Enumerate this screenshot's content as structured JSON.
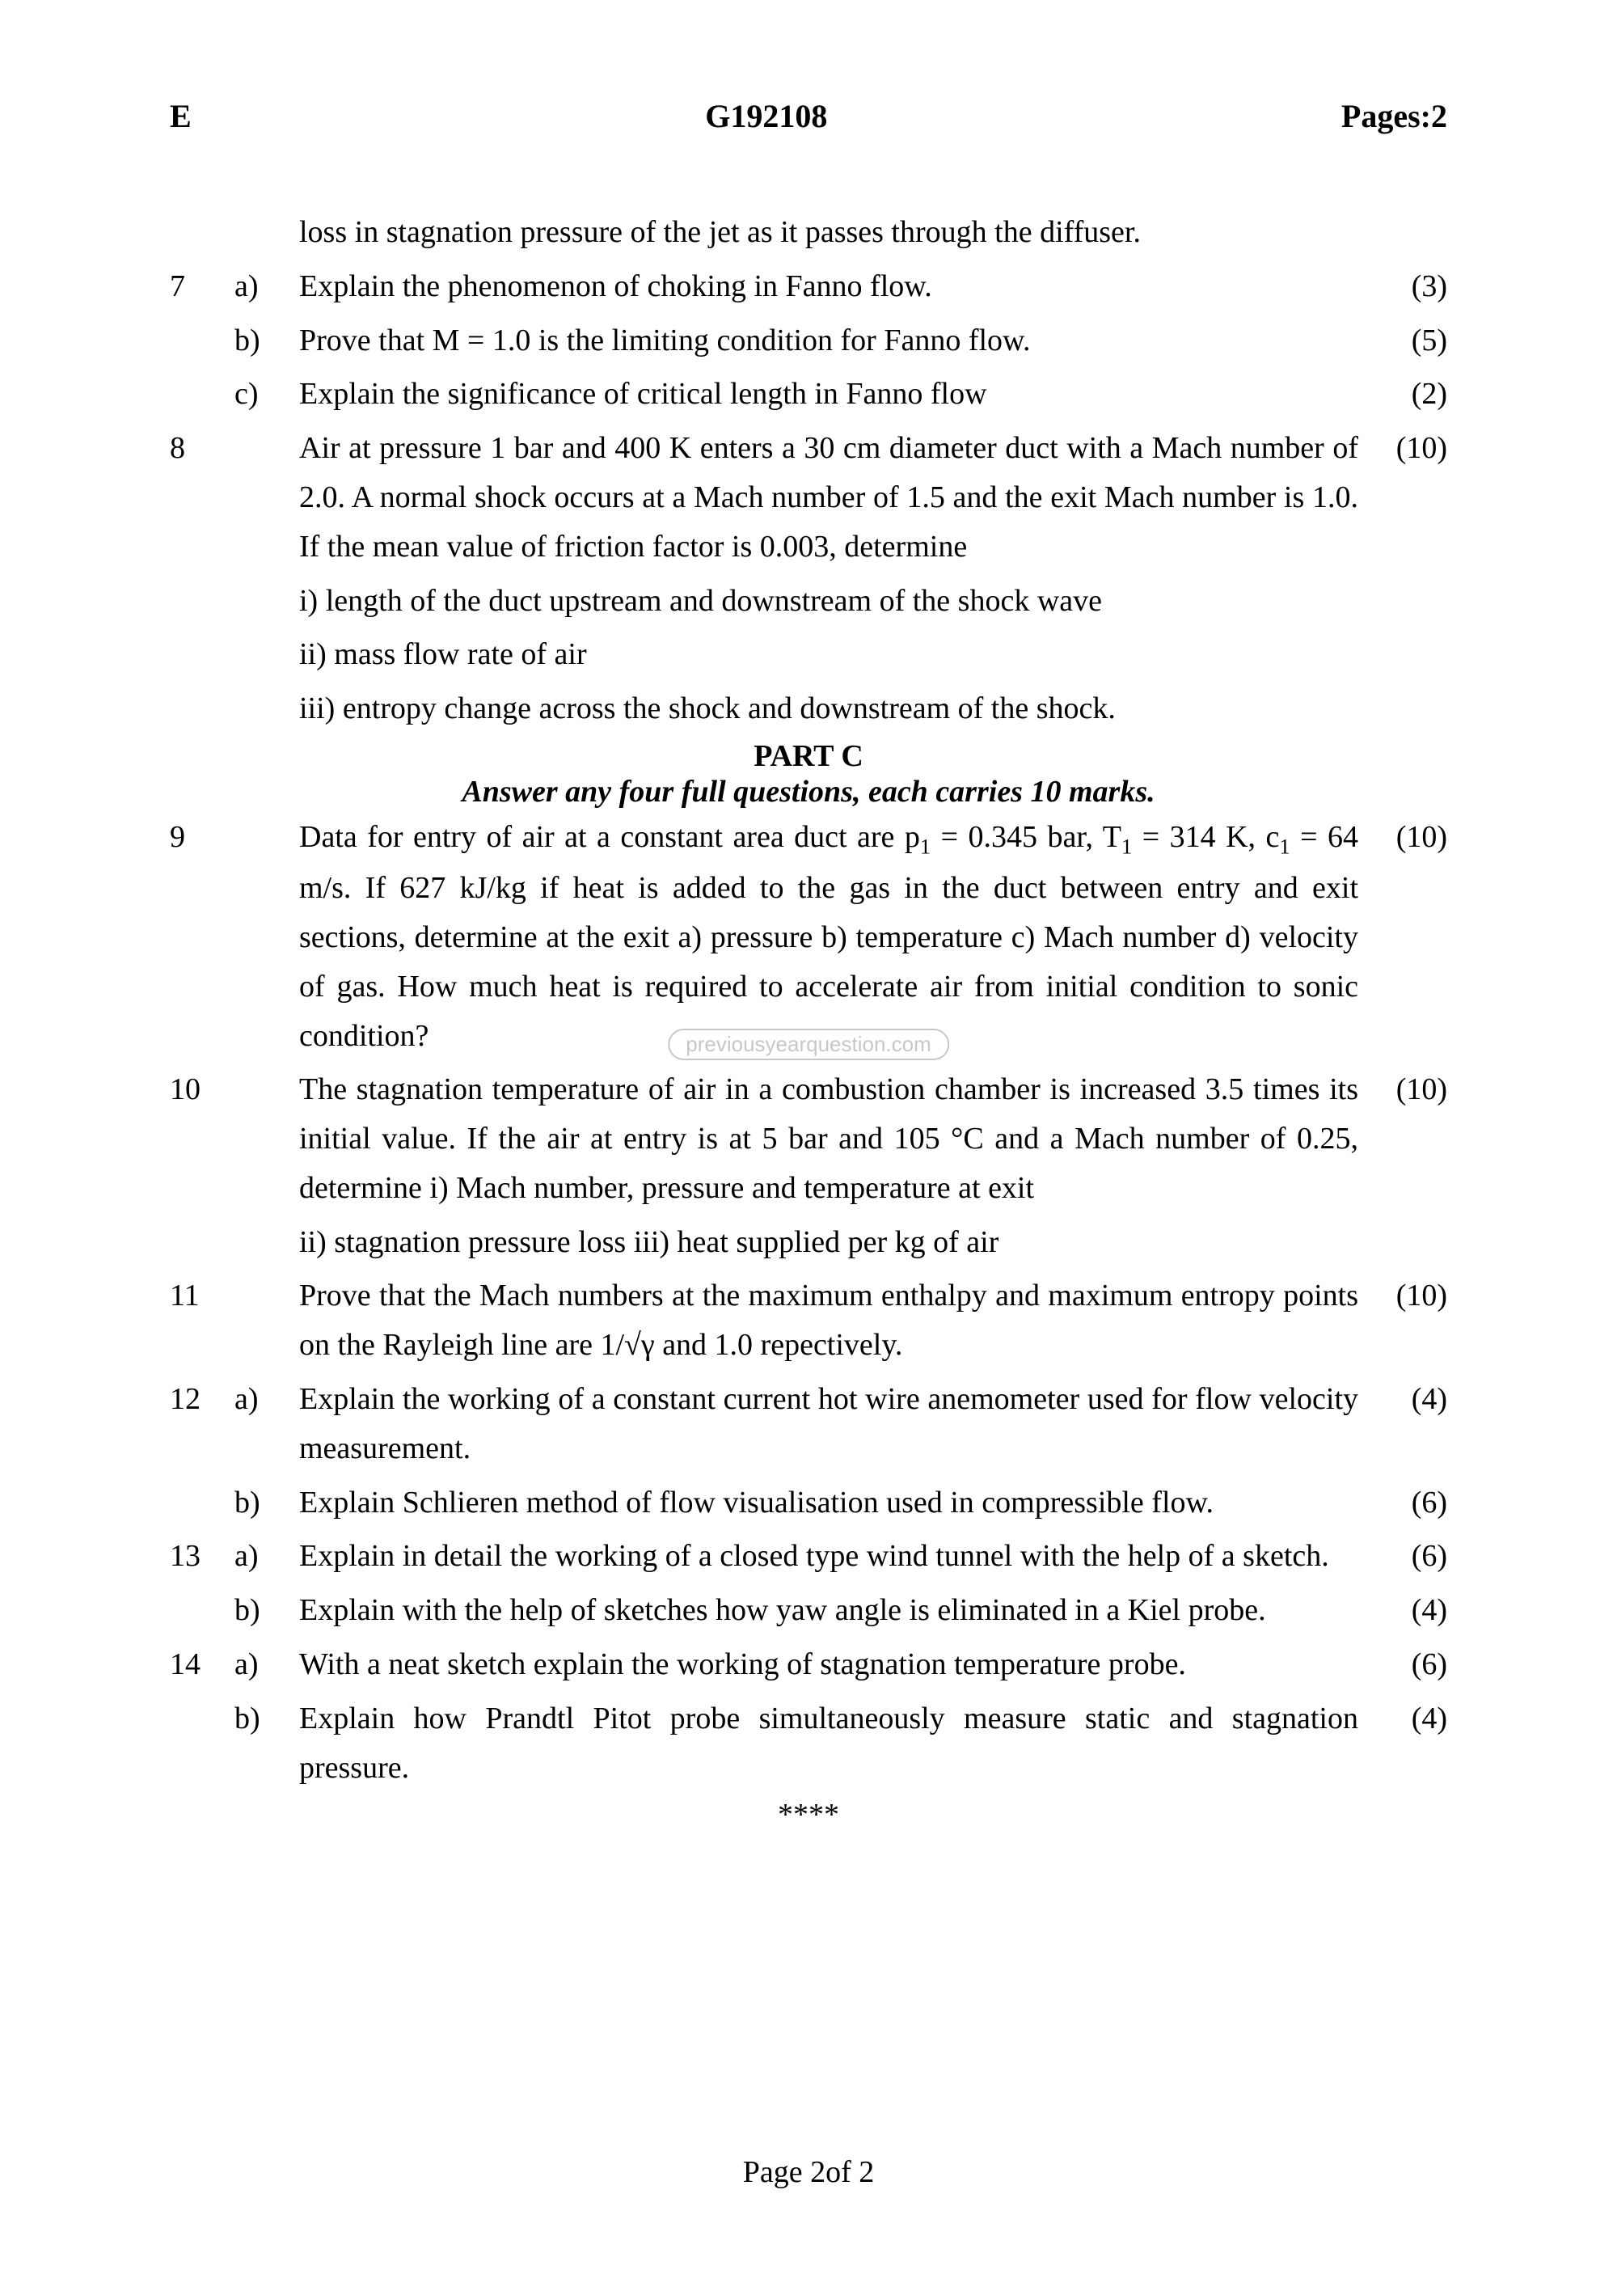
{
  "header": {
    "left": "E",
    "center": "G192108",
    "right": "Pages:2"
  },
  "rows": [
    {
      "num": "",
      "sub": "",
      "text": "loss in stagnation pressure of the jet as it passes through the diffuser.",
      "marks": ""
    },
    {
      "num": "7",
      "sub": "a)",
      "text": "Explain the phenomenon of choking in Fanno flow.",
      "marks": "(3)"
    },
    {
      "num": "",
      "sub": "b)",
      "text": "Prove that M = 1.0 is the limiting condition for Fanno flow.",
      "marks": "(5)"
    },
    {
      "num": "",
      "sub": "c)",
      "text": "Explain the significance of critical length in Fanno flow",
      "marks": "(2)"
    },
    {
      "num": "8",
      "sub": "",
      "text": "Air at pressure 1 bar and 400 K enters a 30 cm diameter duct with a Mach number of 2.0. A normal shock occurs at a Mach number of 1.5 and the exit Mach number is 1.0. If the mean value of friction factor is 0.003, determine",
      "marks": "(10)"
    },
    {
      "num": "",
      "sub": "",
      "text": "i) length of the duct upstream and downstream of the shock wave",
      "marks": ""
    },
    {
      "num": "",
      "sub": "",
      "text": "ii) mass flow rate of air",
      "marks": ""
    },
    {
      "num": "",
      "sub": "",
      "text": "iii) entropy change across the shock and downstream of the shock.",
      "marks": ""
    }
  ],
  "partC": {
    "title": "PART C",
    "subtitle": "Answer any four full questions, each carries 10 marks."
  },
  "rows2": [
    {
      "num": "9",
      "sub": "",
      "html": "Data for entry of air at a constant area duct are p<sub>1</sub> = 0.345 bar, T<sub>1</sub> = 314 K, c<sub>1</sub> = 64 m/s. If 627 kJ/kg if heat is added to the gas in the duct between entry and exit sections, determine at the exit a) pressure b) temperature c) Mach number d) velocity of gas. How much heat is required to accelerate air from initial condition to sonic condition?",
      "marks": "(10)"
    },
    {
      "num": "10",
      "sub": "",
      "text": "The stagnation temperature of air in a combustion chamber is increased 3.5 times its initial value. If the air at entry is at 5 bar and 105 °C and a Mach number of 0.25, determine i) Mach number, pressure and temperature at exit",
      "marks": "(10)"
    },
    {
      "num": "",
      "sub": "",
      "text": "ii) stagnation pressure loss iii) heat supplied per kg of air",
      "marks": ""
    },
    {
      "num": "11",
      "sub": "",
      "text": "Prove that the Mach numbers at the maximum enthalpy and maximum entropy points on the Rayleigh line are 1/√γ and 1.0 repectively.",
      "marks": "(10)"
    },
    {
      "num": "12",
      "sub": "a)",
      "text": "Explain the working of a constant current hot wire anemometer used for flow velocity measurement.",
      "marks": "(4)"
    },
    {
      "num": "",
      "sub": "b)",
      "text": "Explain Schlieren method of flow visualisation used in compressible flow.",
      "marks": "(6)"
    },
    {
      "num": "13",
      "sub": "a)",
      "text": "Explain in detail the working of a closed type wind tunnel with the help of a sketch.",
      "marks": "(6)"
    },
    {
      "num": "",
      "sub": "b)",
      "text": "Explain with the help of sketches how yaw angle is eliminated in a Kiel probe.",
      "marks": "(4)"
    },
    {
      "num": "14",
      "sub": "a)",
      "text": "With a neat sketch explain the working of stagnation temperature probe.",
      "marks": "(6)"
    },
    {
      "num": "",
      "sub": "b)",
      "text": "Explain how Prandtl Pitot probe simultaneously measure static and stagnation pressure.",
      "marks": "(4)"
    }
  ],
  "stars": "****",
  "footer": "Page 2of 2",
  "watermark": "previousyearquestion.com"
}
